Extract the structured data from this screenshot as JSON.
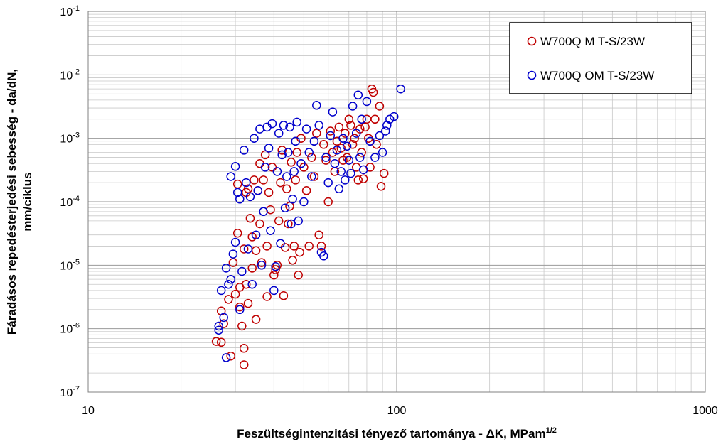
{
  "chart_data": {
    "type": "scatter",
    "xlabel": "Feszültségintenzitási tényező tartománya - ΔK, MPam",
    "xlabel_sup": "1/2",
    "ylabel_line1": "Fáradásos repedésterjedési sebesség - da/dN,",
    "ylabel_line2": "mm/ciklus",
    "x_scale": "log",
    "y_scale": "log",
    "xlim": [
      10,
      1000
    ],
    "ylim": [
      1e-07,
      0.1
    ],
    "x_ticks": [
      {
        "value": 10,
        "label": "10"
      },
      {
        "value": 100,
        "label": "100"
      },
      {
        "value": 1000,
        "label": "1000"
      }
    ],
    "y_ticks": [
      {
        "value": 1e-07,
        "base": "10",
        "exp": "-7"
      },
      {
        "value": 1e-06,
        "base": "10",
        "exp": "-6"
      },
      {
        "value": 1e-05,
        "base": "10",
        "exp": "-5"
      },
      {
        "value": 0.0001,
        "base": "10",
        "exp": "-4"
      },
      {
        "value": 0.001,
        "base": "10",
        "exp": "-3"
      },
      {
        "value": 0.01,
        "base": "10",
        "exp": "-2"
      },
      {
        "value": 0.1,
        "base": "10",
        "exp": "-1"
      }
    ],
    "grid": true,
    "legend_position": "top-right",
    "series": [
      {
        "name": "W700Q M T-S/23W",
        "color": "#c00000",
        "marker": "open-circle",
        "points": [
          [
            26.0,
            6.3e-07
          ],
          [
            27.0,
            6.1e-07
          ],
          [
            27.0,
            1.9e-06
          ],
          [
            27.5,
            1.2e-06
          ],
          [
            28.5,
            2.9e-06
          ],
          [
            29.0,
            3.7e-07
          ],
          [
            29.5,
            1.1e-05
          ],
          [
            30.0,
            3.5e-06
          ],
          [
            30.5,
            3.2e-05
          ],
          [
            30.5,
            0.00019
          ],
          [
            31.0,
            2.2e-06
          ],
          [
            31.0,
            4.5e-06
          ],
          [
            31.5,
            1.1e-06
          ],
          [
            32.0,
            2.7e-07
          ],
          [
            32.0,
            4.9e-07
          ],
          [
            32.0,
            1.8e-05
          ],
          [
            32.5,
            5e-06
          ],
          [
            32.5,
            0.00014
          ],
          [
            33.0,
            2.5e-06
          ],
          [
            33.0,
            0.00016
          ],
          [
            33.5,
            5.5e-05
          ],
          [
            34.0,
            9e-06
          ],
          [
            34.0,
            2.8e-05
          ],
          [
            34.5,
            0.00022
          ],
          [
            35.0,
            1.4e-06
          ],
          [
            35.0,
            1.7e-05
          ],
          [
            35.5,
            0.00015
          ],
          [
            36.0,
            4.5e-05
          ],
          [
            36.0,
            0.0004
          ],
          [
            36.5,
            1.1e-05
          ],
          [
            37.0,
            0.00022
          ],
          [
            37.5,
            0.00055
          ],
          [
            38.0,
            3.2e-06
          ],
          [
            38.0,
            2e-05
          ],
          [
            38.5,
            0.00014
          ],
          [
            39.0,
            7.5e-05
          ],
          [
            39.5,
            0.00035
          ],
          [
            40.0,
            7e-06
          ],
          [
            40.5,
            8.5e-06
          ],
          [
            41.0,
            1e-05
          ],
          [
            41.5,
            5e-05
          ],
          [
            42.0,
            0.0002
          ],
          [
            42.5,
            0.00065
          ],
          [
            43.0,
            3.3e-06
          ],
          [
            43.5,
            1.9e-05
          ],
          [
            44.0,
            0.00016
          ],
          [
            44.5,
            4.5e-05
          ],
          [
            45.0,
            8.5e-05
          ],
          [
            45.5,
            0.00042
          ],
          [
            46.0,
            1.2e-05
          ],
          [
            46.5,
            2e-05
          ],
          [
            47.0,
            0.00022
          ],
          [
            47.5,
            0.0006
          ],
          [
            48.0,
            7e-06
          ],
          [
            48.5,
            1.6e-05
          ],
          [
            49.0,
            0.001
          ],
          [
            50.0,
            0.00035
          ],
          [
            51.0,
            0.00015
          ],
          [
            52.0,
            2e-05
          ],
          [
            53.0,
            0.0005
          ],
          [
            54.0,
            0.00025
          ],
          [
            55.0,
            0.0012
          ],
          [
            56.0,
            3e-05
          ],
          [
            57.0,
            2e-05
          ],
          [
            58.0,
            0.0008
          ],
          [
            59.0,
            0.00045
          ],
          [
            60.0,
            0.0001
          ],
          [
            61.0,
            0.0013
          ],
          [
            62.0,
            0.0006
          ],
          [
            63.0,
            0.0003
          ],
          [
            64.0,
            0.0009
          ],
          [
            65.0,
            0.0015
          ],
          [
            66.0,
            0.0007
          ],
          [
            67.0,
            0.00045
          ],
          [
            68.0,
            0.0012
          ],
          [
            69.0,
            0.0005
          ],
          [
            70.0,
            0.002
          ],
          [
            71.0,
            0.0016
          ],
          [
            72.0,
            0.0008
          ],
          [
            73.0,
            0.001
          ],
          [
            74.0,
            0.00035
          ],
          [
            75.0,
            0.00022
          ],
          [
            76.0,
            0.0014
          ],
          [
            77.0,
            0.0006
          ],
          [
            78.0,
            0.00023
          ],
          [
            79.0,
            0.0015
          ],
          [
            80.0,
            0.002
          ],
          [
            81.0,
            0.001
          ],
          [
            82.0,
            0.00035
          ],
          [
            83.0,
            0.006
          ],
          [
            84.0,
            0.0053
          ],
          [
            85.0,
            0.002
          ],
          [
            86.0,
            0.0008
          ],
          [
            88.0,
            0.0032
          ],
          [
            89.0,
            0.000175
          ],
          [
            91.0,
            0.00028
          ]
        ]
      },
      {
        "name": "W700Q OM T-S/23W",
        "color": "#0000cc",
        "marker": "open-circle",
        "points": [
          [
            26.5,
            9.5e-07
          ],
          [
            26.5,
            1.1e-06
          ],
          [
            27.0,
            4e-06
          ],
          [
            27.5,
            1.5e-06
          ],
          [
            28.0,
            3.5e-07
          ],
          [
            28.0,
            9e-06
          ],
          [
            28.5,
            5e-06
          ],
          [
            29.0,
            0.00025
          ],
          [
            29.0,
            6e-06
          ],
          [
            29.5,
            1.5e-05
          ],
          [
            30.0,
            2.3e-05
          ],
          [
            30.0,
            0.00036
          ],
          [
            30.5,
            0.00014
          ],
          [
            31.0,
            0.00011
          ],
          [
            31.0,
            2e-06
          ],
          [
            31.5,
            8e-06
          ],
          [
            32.0,
            0.00065
          ],
          [
            32.5,
            0.0002
          ],
          [
            33.0,
            1.8e-05
          ],
          [
            33.5,
            0.00012
          ],
          [
            34.0,
            5e-06
          ],
          [
            34.5,
            0.001
          ],
          [
            35.0,
            3e-05
          ],
          [
            35.5,
            0.00015
          ],
          [
            36.0,
            0.0014
          ],
          [
            36.5,
            1e-05
          ],
          [
            37.0,
            7e-05
          ],
          [
            37.5,
            0.00035
          ],
          [
            38.0,
            0.0015
          ],
          [
            38.5,
            0.0007
          ],
          [
            39.0,
            3.5e-05
          ],
          [
            39.5,
            0.0017
          ],
          [
            40.0,
            4e-06
          ],
          [
            40.5,
            9.5e-06
          ],
          [
            41.0,
            0.0003
          ],
          [
            41.5,
            0.0012
          ],
          [
            42.0,
            2.2e-05
          ],
          [
            42.5,
            0.00055
          ],
          [
            43.0,
            0.0016
          ],
          [
            43.5,
            8e-05
          ],
          [
            44.0,
            0.00025
          ],
          [
            44.5,
            0.0006
          ],
          [
            45.0,
            0.0015
          ],
          [
            45.5,
            4.5e-05
          ],
          [
            46.0,
            0.00011
          ],
          [
            46.5,
            0.0003
          ],
          [
            47.0,
            0.0009
          ],
          [
            47.5,
            0.0018
          ],
          [
            48.0,
            5e-05
          ],
          [
            49.0,
            0.0004
          ],
          [
            50.0,
            0.0001
          ],
          [
            51.0,
            0.0014
          ],
          [
            52.0,
            0.0006
          ],
          [
            53.0,
            0.00025
          ],
          [
            54.0,
            0.0009
          ],
          [
            55.0,
            0.0033
          ],
          [
            56.0,
            0.0016
          ],
          [
            57.0,
            1.6e-05
          ],
          [
            58.0,
            1.4e-05
          ],
          [
            59.0,
            0.0005
          ],
          [
            60.0,
            0.0002
          ],
          [
            61.0,
            0.0011
          ],
          [
            62.0,
            0.0026
          ],
          [
            63.0,
            0.0004
          ],
          [
            64.0,
            0.00065
          ],
          [
            65.0,
            0.00016
          ],
          [
            66.0,
            0.0003
          ],
          [
            67.0,
            0.001
          ],
          [
            68.0,
            0.00022
          ],
          [
            69.0,
            0.00075
          ],
          [
            70.0,
            0.00045
          ],
          [
            71.0,
            0.00028
          ],
          [
            72.0,
            0.0032
          ],
          [
            74.0,
            0.0012
          ],
          [
            75.0,
            0.0048
          ],
          [
            76.0,
            0.0005
          ],
          [
            77.0,
            0.002
          ],
          [
            78.0,
            0.00032
          ],
          [
            80.0,
            0.0038
          ],
          [
            82.0,
            0.0009
          ],
          [
            85.0,
            0.0005
          ],
          [
            88.0,
            0.0011
          ],
          [
            90.0,
            0.0006
          ],
          [
            92.0,
            0.0013
          ],
          [
            93.0,
            0.0016
          ],
          [
            95.0,
            0.002
          ],
          [
            98.0,
            0.0022
          ],
          [
            103.0,
            0.006
          ]
        ]
      }
    ]
  }
}
